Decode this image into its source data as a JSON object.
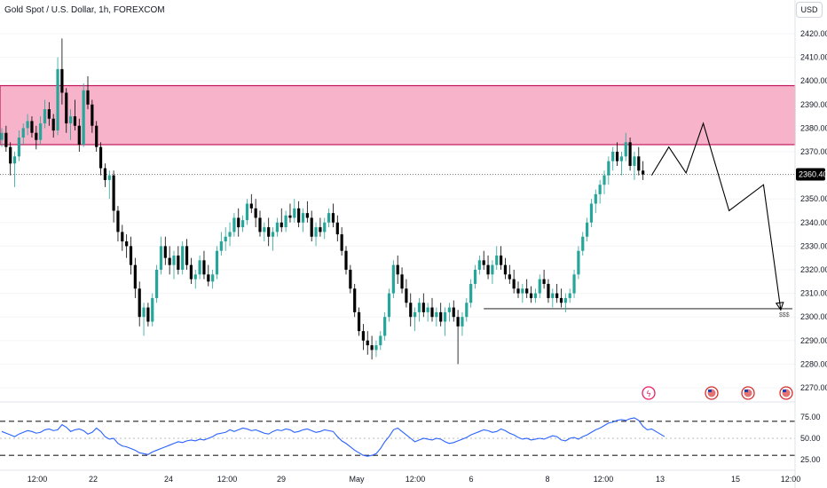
{
  "header": {
    "title": "Gold Spot / U.S. Dollar, 1h, FOREXCOM"
  },
  "currency": "USD",
  "colors": {
    "up": "#26a69a",
    "down": "#000000",
    "zone_fill": "#f7b3c9",
    "zone_border": "#c2185b",
    "rsi": "#2962ff",
    "projection": "#000000",
    "price_tag_bg": "#000000",
    "event_red": "#e91e63"
  },
  "chart_data": [
    {
      "type": "candlestick",
      "title": "Gold Spot / U.S. Dollar, 1h, FOREXCOM",
      "ylim": [
        2265,
        2432
      ],
      "y_ticks": [
        2420,
        2410,
        2400,
        2390,
        2380,
        2370,
        2360,
        2350,
        2340,
        2330,
        2320,
        2310,
        2300,
        2290,
        2280,
        2270
      ],
      "y_tick_labels": [
        "2420.00",
        "2410.00",
        "2400.00",
        "2390.00",
        "2380.00",
        "2370.00",
        "",
        "2350.00",
        "2340.00",
        "2330.00",
        "2320.00",
        "2310.00",
        "2300.00",
        "2290.00",
        "2280.00",
        "2270.00"
      ],
      "x_tick_labels": [
        "12:00",
        "22",
        "24",
        "12:00",
        "29",
        "May",
        "12:00",
        "6",
        "8",
        "12:00",
        "13",
        "15",
        "12:00"
      ],
      "last_price": 2360.4,
      "last_price_label": "2360.40",
      "supply_zone": {
        "from": 2373,
        "to": 2398
      },
      "support_line": {
        "price": 2303.5,
        "label": "$$$"
      },
      "projection_path": [
        {
          "bar": 151,
          "price": 2360
        },
        {
          "bar": 155,
          "price": 2372
        },
        {
          "bar": 159,
          "price": 2361
        },
        {
          "bar": 163,
          "price": 2382
        },
        {
          "bar": 169,
          "price": 2345
        },
        {
          "bar": 177,
          "price": 2356
        },
        {
          "bar": 181,
          "price": 2303
        }
      ],
      "candles": [
        [
          2375,
          2380,
          2372,
          2378
        ],
        [
          2378,
          2381,
          2370,
          2372
        ],
        [
          2372,
          2374,
          2360,
          2365
        ],
        [
          2365,
          2370,
          2355,
          2368
        ],
        [
          2368,
          2379,
          2366,
          2376
        ],
        [
          2376,
          2382,
          2373,
          2380
        ],
        [
          2380,
          2386,
          2377,
          2383
        ],
        [
          2383,
          2385,
          2376,
          2378
        ],
        [
          2378,
          2381,
          2371,
          2375
        ],
        [
          2375,
          2385,
          2373,
          2382
        ],
        [
          2382,
          2392,
          2380,
          2388
        ],
        [
          2388,
          2391,
          2381,
          2384
        ],
        [
          2384,
          2386,
          2376,
          2379
        ],
        [
          2379,
          2410,
          2377,
          2405
        ],
        [
          2405,
          2418,
          2390,
          2395
        ],
        [
          2395,
          2397,
          2378,
          2382
        ],
        [
          2382,
          2388,
          2375,
          2385
        ],
        [
          2385,
          2392,
          2379,
          2381
        ],
        [
          2381,
          2384,
          2370,
          2373
        ],
        [
          2373,
          2399,
          2372,
          2396
        ],
        [
          2396,
          2402,
          2388,
          2390
        ],
        [
          2390,
          2392,
          2378,
          2381
        ],
        [
          2381,
          2383,
          2370,
          2372
        ],
        [
          2372,
          2374,
          2360,
          2363
        ],
        [
          2363,
          2365,
          2355,
          2358
        ],
        [
          2358,
          2362,
          2350,
          2360
        ],
        [
          2360,
          2362,
          2340,
          2345
        ],
        [
          2345,
          2347,
          2332,
          2336
        ],
        [
          2336,
          2339,
          2328,
          2332
        ],
        [
          2332,
          2335,
          2325,
          2330
        ],
        [
          2330,
          2334,
          2318,
          2322
        ],
        [
          2322,
          2325,
          2308,
          2312
        ],
        [
          2312,
          2315,
          2296,
          2300
        ],
        [
          2300,
          2306,
          2292,
          2304
        ],
        [
          2304,
          2306,
          2296,
          2298
        ],
        [
          2298,
          2310,
          2296,
          2308
        ],
        [
          2308,
          2322,
          2306,
          2320
        ],
        [
          2320,
          2334,
          2318,
          2330
        ],
        [
          2330,
          2334,
          2322,
          2325
        ],
        [
          2325,
          2330,
          2318,
          2322
        ],
        [
          2322,
          2328,
          2316,
          2326
        ],
        [
          2326,
          2330,
          2318,
          2320
        ],
        [
          2320,
          2332,
          2318,
          2330
        ],
        [
          2330,
          2333,
          2320,
          2322
        ],
        [
          2322,
          2325,
          2314,
          2316
        ],
        [
          2316,
          2320,
          2312,
          2318
        ],
        [
          2318,
          2326,
          2316,
          2324
        ],
        [
          2324,
          2328,
          2316,
          2318
        ],
        [
          2318,
          2322,
          2313,
          2315
        ],
        [
          2315,
          2320,
          2312,
          2318
        ],
        [
          2318,
          2330,
          2316,
          2328
        ],
        [
          2328,
          2336,
          2326,
          2332
        ],
        [
          2332,
          2338,
          2328,
          2334
        ],
        [
          2334,
          2340,
          2330,
          2336
        ],
        [
          2336,
          2344,
          2334,
          2342
        ],
        [
          2342,
          2346,
          2334,
          2338
        ],
        [
          2338,
          2343,
          2336,
          2341
        ],
        [
          2341,
          2350,
          2339,
          2348
        ],
        [
          2348,
          2352,
          2344,
          2346
        ],
        [
          2346,
          2350,
          2338,
          2342
        ],
        [
          2342,
          2345,
          2334,
          2336
        ],
        [
          2336,
          2340,
          2332,
          2338
        ],
        [
          2338,
          2342,
          2330,
          2334
        ],
        [
          2334,
          2338,
          2328,
          2336
        ],
        [
          2336,
          2342,
          2334,
          2340
        ],
        [
          2340,
          2346,
          2336,
          2338
        ],
        [
          2338,
          2345,
          2336,
          2343
        ],
        [
          2343,
          2348,
          2340,
          2342
        ],
        [
          2342,
          2350,
          2340,
          2346
        ],
        [
          2346,
          2349,
          2338,
          2340
        ],
        [
          2340,
          2346,
          2336,
          2344
        ],
        [
          2344,
          2349,
          2340,
          2342
        ],
        [
          2342,
          2345,
          2332,
          2334
        ],
        [
          2334,
          2340,
          2330,
          2338
        ],
        [
          2338,
          2342,
          2334,
          2336
        ],
        [
          2336,
          2342,
          2333,
          2340
        ],
        [
          2340,
          2346,
          2338,
          2344
        ],
        [
          2344,
          2348,
          2338,
          2340
        ],
        [
          2340,
          2343,
          2332,
          2335
        ],
        [
          2335,
          2338,
          2326,
          2328
        ],
        [
          2328,
          2330,
          2318,
          2320
        ],
        [
          2320,
          2322,
          2310,
          2312
        ],
        [
          2312,
          2314,
          2300,
          2302
        ],
        [
          2302,
          2304,
          2292,
          2294
        ],
        [
          2294,
          2297,
          2286,
          2290
        ],
        [
          2290,
          2294,
          2284,
          2288
        ],
        [
          2288,
          2292,
          2282,
          2286
        ],
        [
          2286,
          2290,
          2283,
          2288
        ],
        [
          2288,
          2294,
          2286,
          2292
        ],
        [
          2292,
          2302,
          2290,
          2300
        ],
        [
          2300,
          2312,
          2298,
          2310
        ],
        [
          2310,
          2324,
          2308,
          2322
        ],
        [
          2322,
          2326,
          2314,
          2318
        ],
        [
          2318,
          2321,
          2310,
          2312
        ],
        [
          2312,
          2316,
          2304,
          2306
        ],
        [
          2306,
          2310,
          2296,
          2300
        ],
        [
          2300,
          2304,
          2294,
          2302
        ],
        [
          2302,
          2308,
          2298,
          2306
        ],
        [
          2306,
          2310,
          2300,
          2302
        ],
        [
          2302,
          2306,
          2298,
          2304
        ],
        [
          2304,
          2308,
          2298,
          2300
        ],
        [
          2300,
          2304,
          2296,
          2302
        ],
        [
          2302,
          2306,
          2296,
          2298
        ],
        [
          2298,
          2304,
          2292,
          2302
        ],
        [
          2302,
          2306,
          2298,
          2304
        ],
        [
          2304,
          2307,
          2298,
          2300
        ],
        [
          2300,
          2303,
          2280,
          2296
        ],
        [
          2296,
          2302,
          2292,
          2300
        ],
        [
          2300,
          2308,
          2298,
          2306
        ],
        [
          2306,
          2316,
          2304,
          2314
        ],
        [
          2314,
          2322,
          2312,
          2320
        ],
        [
          2320,
          2326,
          2318,
          2324
        ],
        [
          2324,
          2328,
          2320,
          2322
        ],
        [
          2322,
          2326,
          2316,
          2318
        ],
        [
          2318,
          2324,
          2314,
          2322
        ],
        [
          2322,
          2330,
          2320,
          2326
        ],
        [
          2326,
          2330,
          2320,
          2322
        ],
        [
          2322,
          2325,
          2316,
          2318
        ],
        [
          2318,
          2322,
          2314,
          2316
        ],
        [
          2316,
          2320,
          2310,
          2312
        ],
        [
          2312,
          2315,
          2308,
          2310
        ],
        [
          2310,
          2314,
          2306,
          2312
        ],
        [
          2312,
          2316,
          2308,
          2310
        ],
        [
          2310,
          2313,
          2306,
          2308
        ],
        [
          2308,
          2312,
          2306,
          2310
        ],
        [
          2310,
          2318,
          2308,
          2316
        ],
        [
          2316,
          2320,
          2312,
          2314
        ],
        [
          2314,
          2316,
          2306,
          2308
        ],
        [
          2308,
          2312,
          2304,
          2310
        ],
        [
          2310,
          2314,
          2306,
          2308
        ],
        [
          2308,
          2312,
          2304,
          2306
        ],
        [
          2306,
          2310,
          2302,
          2308
        ],
        [
          2308,
          2312,
          2306,
          2310
        ],
        [
          2310,
          2320,
          2308,
          2318
        ],
        [
          2318,
          2330,
          2316,
          2328
        ],
        [
          2328,
          2336,
          2326,
          2334
        ],
        [
          2334,
          2342,
          2332,
          2340
        ],
        [
          2340,
          2350,
          2338,
          2348
        ],
        [
          2348,
          2354,
          2344,
          2352
        ],
        [
          2352,
          2358,
          2348,
          2356
        ],
        [
          2356,
          2362,
          2352,
          2360
        ],
        [
          2360,
          2368,
          2356,
          2366
        ],
        [
          2366,
          2372,
          2362,
          2370
        ],
        [
          2370,
          2374,
          2364,
          2366
        ],
        [
          2366,
          2370,
          2360,
          2368
        ],
        [
          2368,
          2378,
          2366,
          2374
        ],
        [
          2374,
          2376,
          2362,
          2364
        ],
        [
          2364,
          2370,
          2358,
          2368
        ],
        [
          2368,
          2372,
          2360,
          2362
        ],
        [
          2362,
          2366,
          2358,
          2360.4
        ]
      ]
    },
    {
      "type": "line",
      "title": "RSI",
      "ylim": [
        20,
        80
      ],
      "y_ticks": [
        75,
        50,
        25
      ],
      "y_tick_labels": [
        "75.00",
        "50.00",
        "25.00"
      ],
      "levels": [
        70,
        30
      ],
      "midline": 50,
      "values": [
        58,
        56,
        54,
        52,
        55,
        57,
        59,
        58,
        56,
        57,
        60,
        61,
        59,
        60,
        66,
        63,
        58,
        60,
        61,
        59,
        55,
        57,
        62,
        58,
        52,
        49,
        50,
        44,
        41,
        40,
        38,
        36,
        33,
        32,
        31,
        34,
        36,
        38,
        40,
        42,
        44,
        46,
        45,
        47,
        48,
        47,
        49,
        48,
        50,
        52,
        55,
        56,
        57,
        60,
        58,
        60,
        62,
        61,
        59,
        60,
        58,
        56,
        55,
        58,
        60,
        59,
        61,
        60,
        57,
        58,
        60,
        61,
        59,
        57,
        58,
        60,
        59,
        58,
        52,
        47,
        44,
        40,
        36,
        33,
        30,
        29,
        30,
        32,
        38,
        46,
        52,
        60,
        62,
        58,
        54,
        50,
        46,
        48,
        50,
        49,
        48,
        50,
        49,
        46,
        44,
        45,
        47,
        49,
        51,
        54,
        56,
        58,
        60,
        59,
        57,
        58,
        61,
        59,
        56,
        54,
        51,
        49,
        50,
        48,
        49,
        50,
        49,
        51,
        53,
        52,
        48,
        47,
        50,
        51,
        49,
        52,
        54,
        57,
        60,
        62,
        65,
        68,
        69,
        71,
        72,
        71,
        73,
        74,
        71,
        64,
        60,
        61,
        58,
        55,
        52
      ]
    }
  ]
}
